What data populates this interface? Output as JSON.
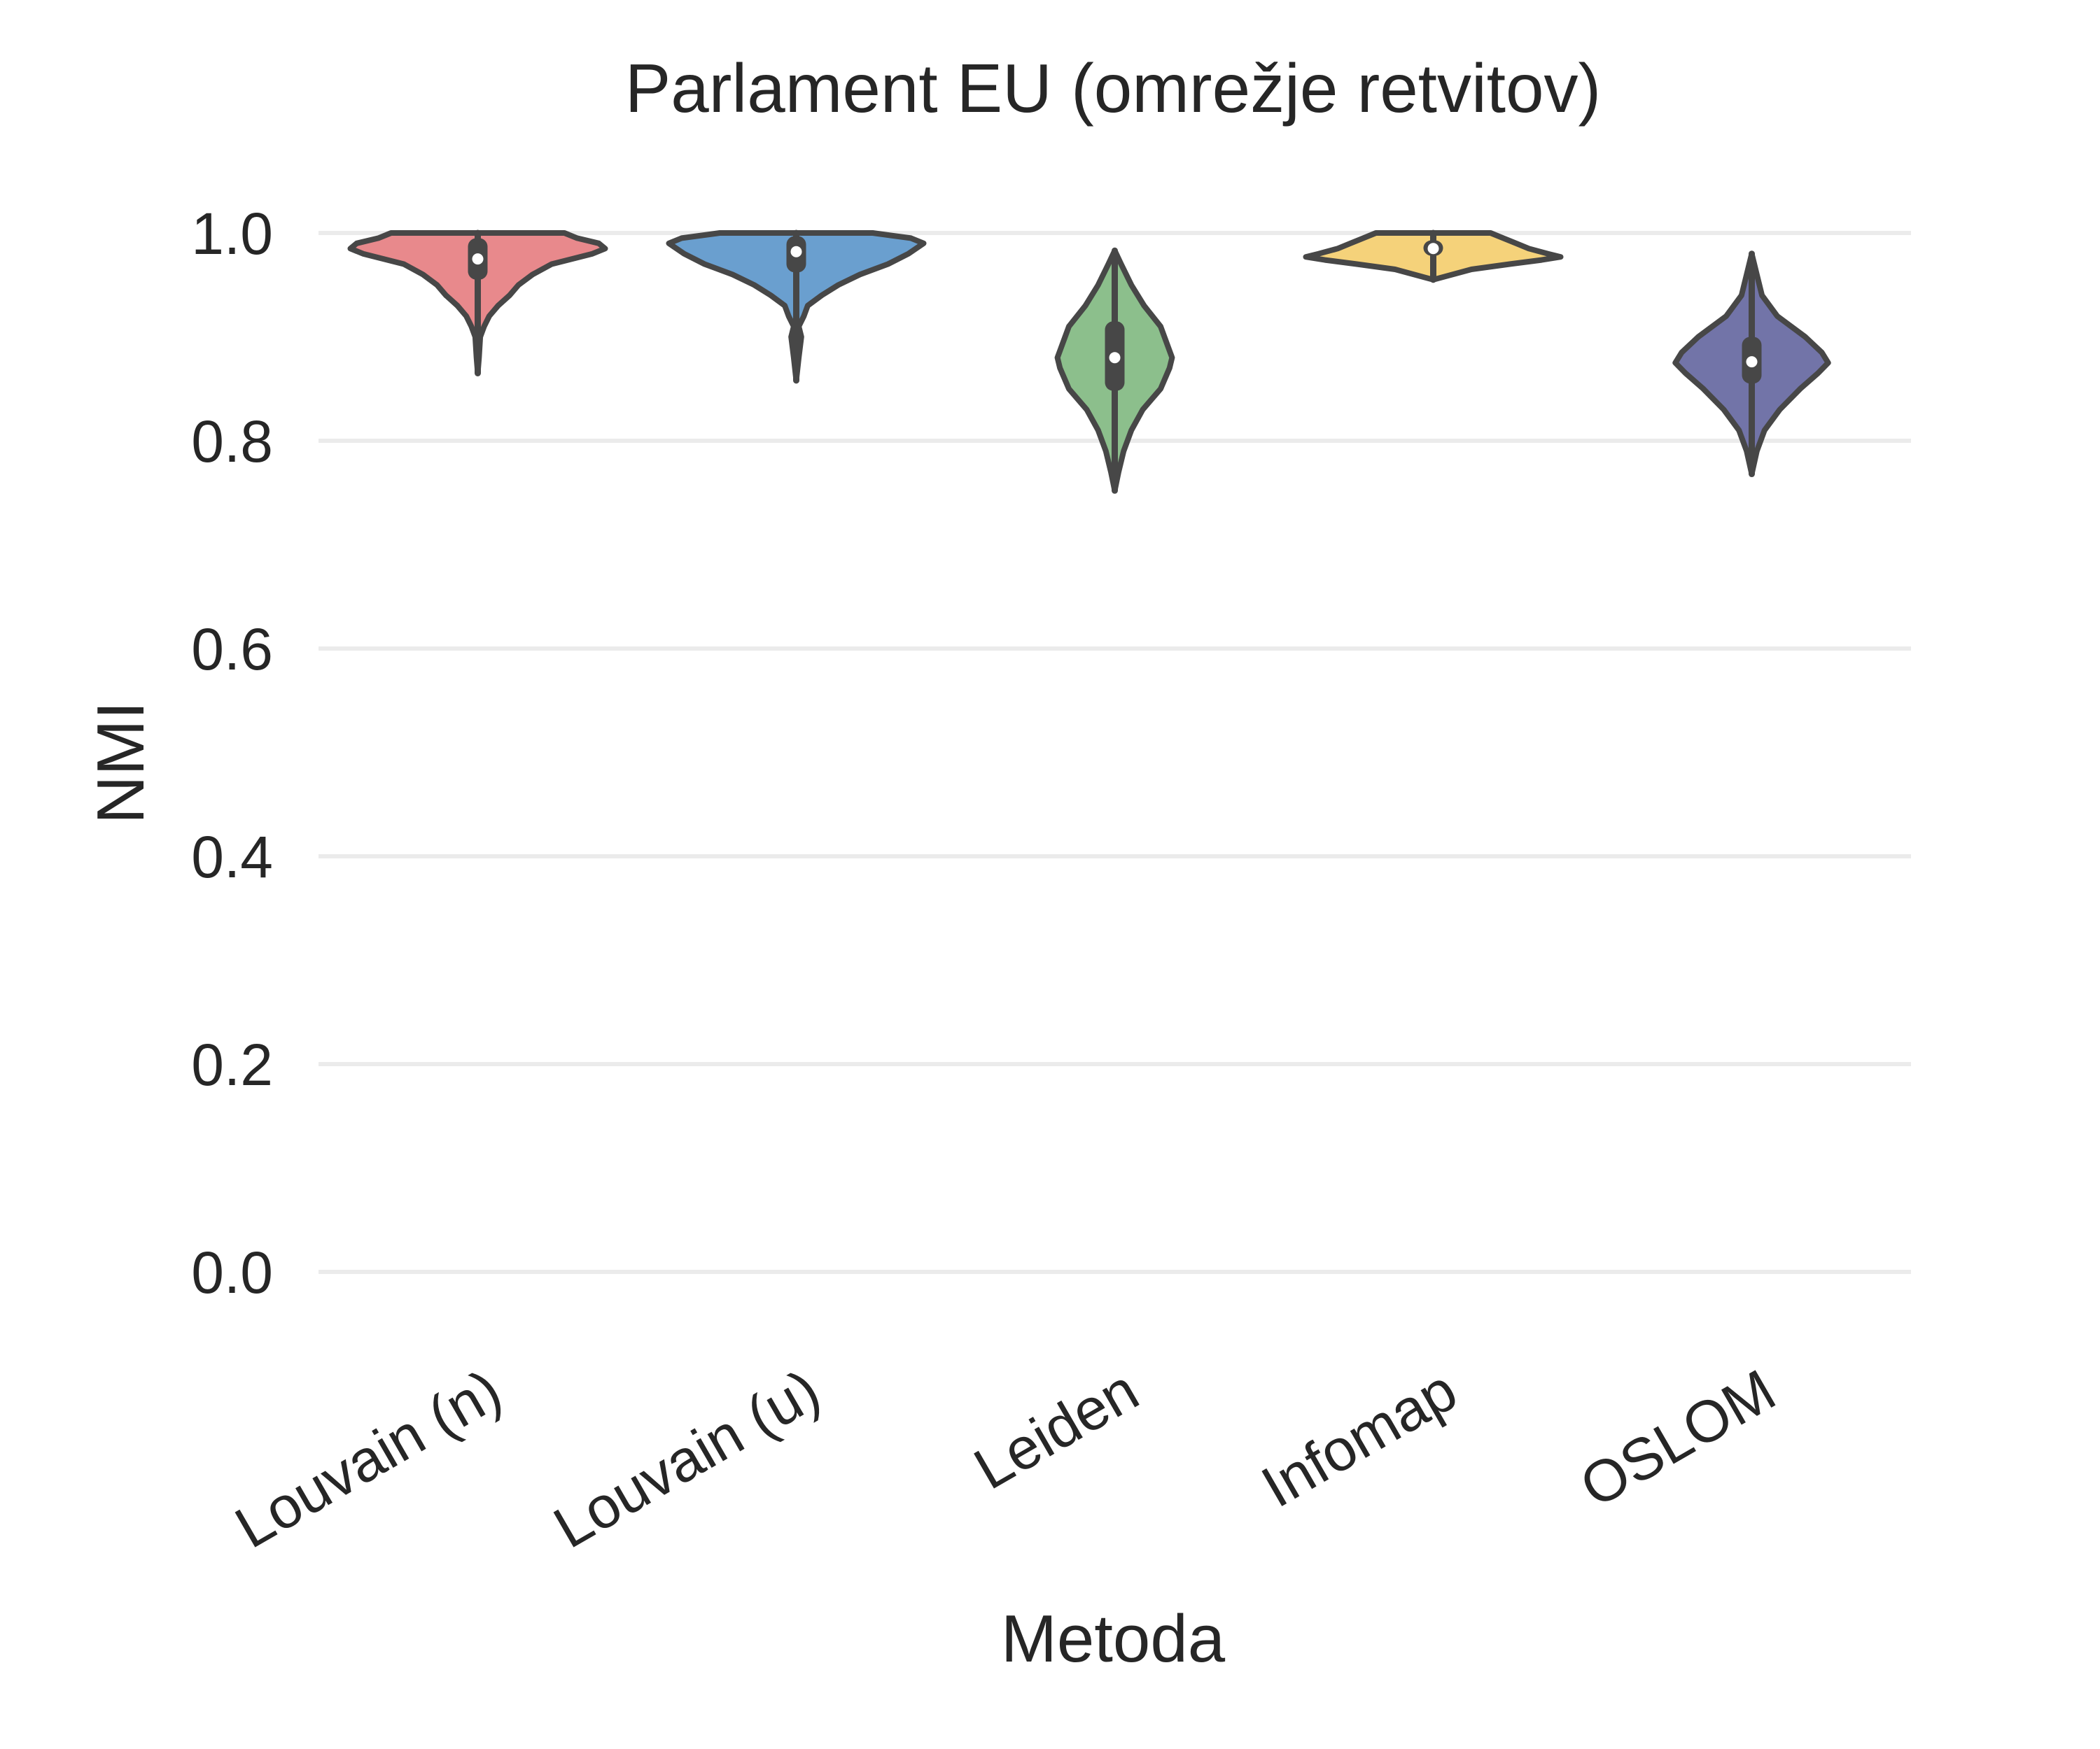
{
  "chart_data": {
    "type": "violin",
    "title": "Parlament EU  (omrežje retvitov)",
    "xlabel": "Metoda",
    "ylabel": "NMI",
    "ylim": [
      -0.1,
      1.08
    ],
    "yticks": [
      0.0,
      0.2,
      0.4,
      0.6,
      0.8,
      1.0
    ],
    "ytick_labels": [
      "0.0",
      "0.2",
      "0.4",
      "0.6",
      "0.8",
      "1.0"
    ],
    "grid": "horizontal",
    "categories": [
      "Louvain (n)",
      "Louvain (u)",
      "Leiden",
      "Infomap",
      "OSLOM"
    ],
    "series": [
      {
        "category": "Louvain (n)",
        "color": "#e8898c",
        "min": 0.865,
        "max": 1.0,
        "q1": 0.955,
        "median": 0.975,
        "q3": 0.995,
        "density": [
          [
            0.865,
            0.0
          ],
          [
            0.88,
            0.01
          ],
          [
            0.9,
            0.02
          ],
          [
            0.91,
            0.05
          ],
          [
            0.92,
            0.09
          ],
          [
            0.93,
            0.16
          ],
          [
            0.94,
            0.25
          ],
          [
            0.95,
            0.32
          ],
          [
            0.96,
            0.43
          ],
          [
            0.97,
            0.58
          ],
          [
            0.98,
            0.9
          ],
          [
            0.985,
            1.0
          ],
          [
            0.99,
            0.95
          ],
          [
            0.995,
            0.78
          ],
          [
            1.0,
            0.68
          ]
        ]
      },
      {
        "category": "Louvain (u)",
        "color": "#6a9fcf",
        "min": 0.858,
        "max": 1.0,
        "q1": 0.962,
        "median": 0.982,
        "q3": 0.997,
        "density": [
          [
            0.858,
            0.0
          ],
          [
            0.88,
            0.02
          ],
          [
            0.9,
            0.04
          ],
          [
            0.91,
            0.02
          ],
          [
            0.92,
            0.06
          ],
          [
            0.93,
            0.09
          ],
          [
            0.94,
            0.2
          ],
          [
            0.95,
            0.33
          ],
          [
            0.96,
            0.5
          ],
          [
            0.97,
            0.72
          ],
          [
            0.98,
            0.88
          ],
          [
            0.99,
            1.0
          ],
          [
            0.995,
            0.9
          ],
          [
            1.0,
            0.6
          ]
        ]
      },
      {
        "category": "Leiden",
        "color": "#8cbf8c",
        "min": 0.752,
        "max": 0.983,
        "q1": 0.848,
        "median": 0.88,
        "q3": 0.915,
        "density": [
          [
            0.752,
            0.0
          ],
          [
            0.77,
            0.03
          ],
          [
            0.79,
            0.07
          ],
          [
            0.81,
            0.13
          ],
          [
            0.83,
            0.22
          ],
          [
            0.85,
            0.36
          ],
          [
            0.87,
            0.43
          ],
          [
            0.88,
            0.45
          ],
          [
            0.89,
            0.42
          ],
          [
            0.91,
            0.36
          ],
          [
            0.93,
            0.23
          ],
          [
            0.95,
            0.13
          ],
          [
            0.97,
            0.05
          ],
          [
            0.983,
            0.0
          ]
        ]
      },
      {
        "category": "Infomap",
        "color": "#f5d27a",
        "min": 0.955,
        "max": 1.0,
        "q1": 0.978,
        "median": 0.985,
        "q3": 0.993,
        "density": [
          [
            0.955,
            0.0
          ],
          [
            0.965,
            0.3
          ],
          [
            0.97,
            0.6
          ],
          [
            0.974,
            0.85
          ],
          [
            0.977,
            1.0
          ],
          [
            0.98,
            0.9
          ],
          [
            0.985,
            0.75
          ],
          [
            0.99,
            0.65
          ],
          [
            0.995,
            0.55
          ],
          [
            1.0,
            0.45
          ]
        ]
      },
      {
        "category": "OSLOM",
        "color": "#7274a8",
        "min": 0.768,
        "max": 0.98,
        "q1": 0.855,
        "median": 0.876,
        "q3": 0.9,
        "density": [
          [
            0.768,
            0.0
          ],
          [
            0.79,
            0.04
          ],
          [
            0.81,
            0.1
          ],
          [
            0.83,
            0.22
          ],
          [
            0.85,
            0.38
          ],
          [
            0.865,
            0.52
          ],
          [
            0.875,
            0.6
          ],
          [
            0.885,
            0.55
          ],
          [
            0.9,
            0.42
          ],
          [
            0.92,
            0.2
          ],
          [
            0.94,
            0.08
          ],
          [
            0.96,
            0.04
          ],
          [
            0.98,
            0.0
          ]
        ]
      }
    ]
  }
}
